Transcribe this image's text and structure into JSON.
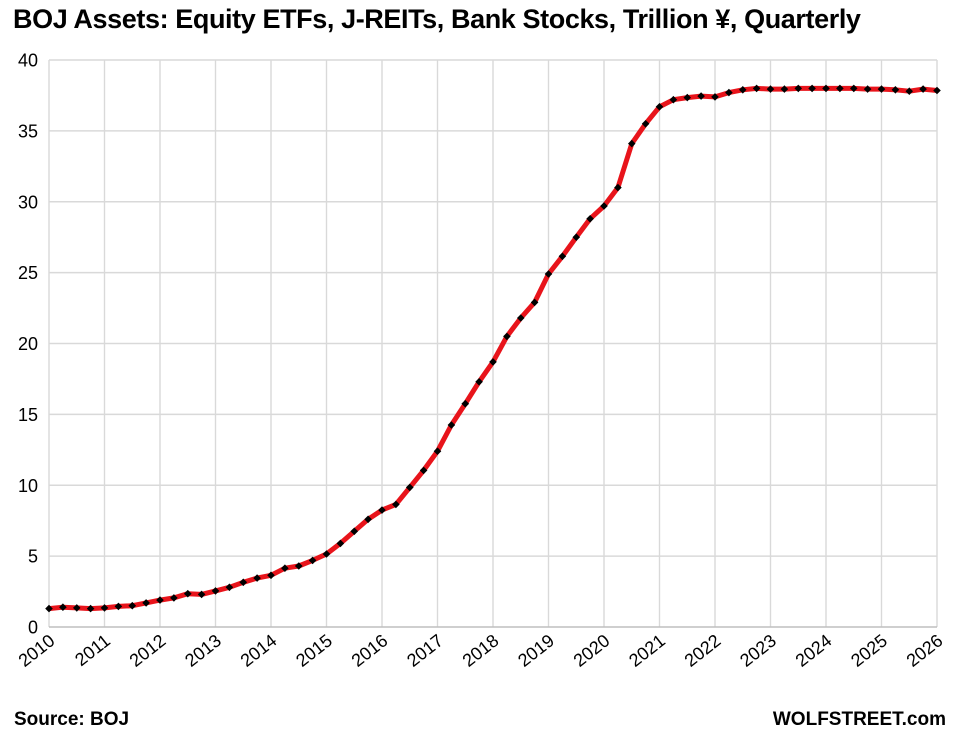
{
  "page": {
    "title": "BOJ Assets: Equity ETFs, J-REITs, Bank Stocks, Trillion ¥, Quarterly",
    "source": "Source: BOJ",
    "watermark": "WOLFSTREET.com"
  },
  "chart_data": {
    "type": "line",
    "title": "BOJ Assets: Equity ETFs, J-REITs, Bank Stocks, Trillion ¥, Quarterly",
    "xlabel": "",
    "ylabel": "Trillion ¥",
    "xlim": [
      2010,
      2026
    ],
    "ylim": [
      0,
      40
    ],
    "x_ticks": [
      2010,
      2011,
      2012,
      2013,
      2014,
      2015,
      2016,
      2017,
      2018,
      2019,
      2020,
      2021,
      2022,
      2023,
      2024,
      2025,
      2026
    ],
    "y_ticks": [
      0,
      5,
      10,
      15,
      20,
      25,
      30,
      35,
      40
    ],
    "grid": true,
    "grid_color": "#d9d9d9",
    "axis_color": "#bfbfbf",
    "legend_position": "none",
    "series": [
      {
        "name": "BOJ holdings of equity ETFs, J-REITs and bank stocks",
        "color": "#e8141b",
        "line_width": 5,
        "marker": "diamond",
        "marker_color": "#000000",
        "x_start": 2010,
        "x_step": 0.25,
        "frequency": "quarterly",
        "values": [
          1.3,
          1.4,
          1.35,
          1.3,
          1.35,
          1.45,
          1.5,
          1.7,
          1.9,
          2.05,
          2.35,
          2.3,
          2.55,
          2.8,
          3.15,
          3.45,
          3.65,
          4.15,
          4.3,
          4.7,
          5.15,
          5.9,
          6.75,
          7.6,
          8.25,
          8.65,
          9.85,
          11.05,
          12.4,
          14.25,
          15.75,
          17.3,
          18.7,
          20.5,
          21.8,
          22.9,
          24.9,
          26.15,
          27.5,
          28.8,
          29.7,
          31.0,
          34.1,
          35.5,
          36.7,
          37.2,
          37.35,
          37.45,
          37.4,
          37.7,
          37.9,
          38.0,
          37.95,
          37.95,
          38.0,
          38.0,
          38.0,
          38.0,
          38.0,
          37.95,
          37.95,
          37.9,
          37.8,
          37.95,
          37.85
        ]
      }
    ]
  }
}
